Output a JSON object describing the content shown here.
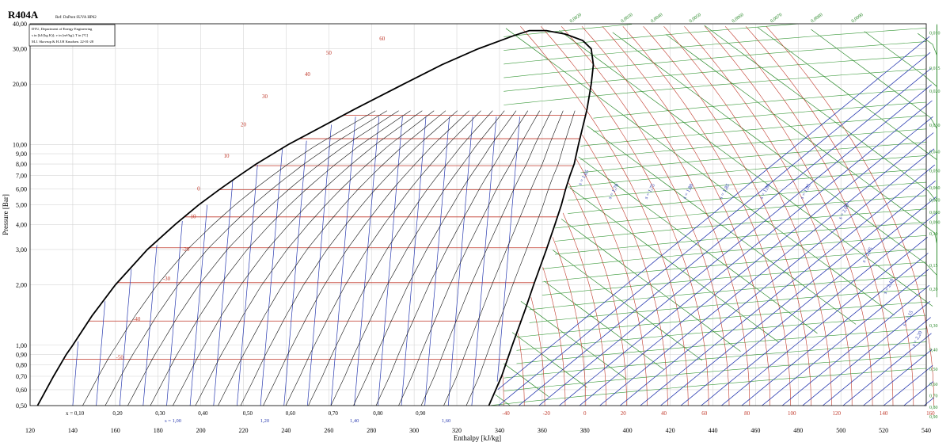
{
  "chart_data": {
    "type": "line",
    "title": "R404A",
    "reference": "Ref: DuPont SUVA HP62",
    "info_lines": [
      "DTU, Department of Energy Engineering",
      "s in [kJ/(kg K)]; v in [m³/kg]; T in [ºC]",
      "M.J. Skovrup & H.J.H Knudsen. 22-01-28"
    ],
    "xlabel": "Enthalpy [kJ/kg]",
    "ylabel": "Pressure [Bar]",
    "xlim": [
      120,
      540
    ],
    "ylim": [
      0.5,
      40
    ],
    "yscale": "log",
    "x_ticks": [
      120,
      140,
      160,
      180,
      200,
      220,
      240,
      260,
      280,
      300,
      320,
      340,
      360,
      380,
      400,
      420,
      440,
      460,
      480,
      500,
      520,
      540
    ],
    "x_tick_labels": [
      "120",
      "140",
      "160",
      "180",
      "200",
      "220",
      "240",
      "260",
      "280",
      "300",
      "320",
      "340",
      "360",
      "380",
      "400",
      "420",
      "440",
      "460",
      "480",
      "500",
      "520",
      "540"
    ],
    "y_ticks": [
      0.5,
      0.6,
      0.7,
      0.8,
      0.9,
      1.0,
      2.0,
      3.0,
      4.0,
      5.0,
      6.0,
      7.0,
      8.0,
      9.0,
      10.0,
      20.0,
      30.0,
      40.0
    ],
    "y_tick_labels": [
      "0,50",
      "0,60",
      "0,70",
      "0,80",
      "0,90",
      "1,00",
      "2,00",
      "3,00",
      "4,00",
      "5,00",
      "6,00",
      "7,00",
      "8,00",
      "9,00",
      "10,00",
      "20,00",
      "30,00",
      "40,00"
    ],
    "grid": true,
    "saturation_dome": {
      "liquid": [
        [
          123.5,
          0.5
        ],
        [
          131,
          0.7
        ],
        [
          137,
          0.9
        ],
        [
          140,
          1.0
        ],
        [
          149,
          1.4
        ],
        [
          160,
          2.0
        ],
        [
          175,
          3.0
        ],
        [
          188,
          4.0
        ],
        [
          199,
          5.0
        ],
        [
          209,
          6.0
        ],
        [
          218,
          7.0
        ],
        [
          226,
          8.0
        ],
        [
          241,
          10.0
        ],
        [
          272,
          15.0
        ],
        [
          295,
          20.0
        ],
        [
          313,
          25.0
        ],
        [
          330,
          30.0
        ],
        [
          347,
          35.0
        ],
        [
          354,
          37.0
        ]
      ],
      "vapour": [
        [
          335,
          0.5
        ],
        [
          341,
          0.7
        ],
        [
          346,
          1.0
        ],
        [
          352,
          1.5
        ],
        [
          356,
          2.0
        ],
        [
          362,
          3.0
        ],
        [
          366,
          4.0
        ],
        [
          369,
          5.0
        ],
        [
          371,
          6.0
        ],
        [
          373,
          7.0
        ],
        [
          375,
          8.0
        ],
        [
          377,
          10.0
        ],
        [
          381,
          15.0
        ],
        [
          383,
          20.0
        ],
        [
          384,
          25.0
        ],
        [
          383,
          30.0
        ],
        [
          379,
          33.0
        ],
        [
          371,
          35.5
        ],
        [
          362,
          37.0
        ],
        [
          354,
          37.0
        ]
      ]
    },
    "isotherm_labels": [
      {
        "T": "-50",
        "h": 162,
        "p": 0.85
      },
      {
        "T": "-40",
        "h": 170,
        "p": 1.32
      },
      {
        "T": "-30",
        "h": 184,
        "p": 2.1
      },
      {
        "T": "-20",
        "h": 193,
        "p": 2.95
      },
      {
        "T": "-10",
        "h": 196,
        "p": 4.3
      },
      {
        "T": "0",
        "h": 199,
        "p": 5.9
      },
      {
        "T": "10",
        "h": 212,
        "p": 8.6
      },
      {
        "T": "20",
        "h": 220,
        "p": 12.3
      },
      {
        "T": "30",
        "h": 230,
        "p": 17.0
      },
      {
        "T": "40",
        "h": 250,
        "p": 22.0
      },
      {
        "T": "50",
        "h": 260,
        "p": 28.0
      },
      {
        "T": "60",
        "h": 285,
        "p": 33.0
      }
    ],
    "isotherm_pressures": [
      0.85,
      1.32,
      2.05,
      3.06,
      4.36,
      5.95,
      7.85,
      10.7,
      14.0,
      18.2,
      23.3,
      29.0
    ],
    "bottom_temperature_labels": [
      "-40",
      "-20",
      "0",
      "20",
      "40",
      "60",
      "80",
      "100",
      "120",
      "140",
      "160"
    ],
    "bottom_temperature_h": [
      343,
      362,
      380,
      398,
      417,
      436,
      456,
      477,
      498,
      520,
      542
    ],
    "quality_labels": [
      "x = 0,10",
      "0,20",
      "0,30",
      "0,40",
      "0,50",
      "0,60",
      "0,70",
      "0,80",
      "0,90"
    ],
    "quality_h": [
      141,
      161,
      181,
      201,
      222,
      242,
      262,
      283,
      303
    ],
    "entropy_bottom_labels": [
      "s = 1,00",
      "1,20",
      "1,40",
      "1,60"
    ],
    "entropy_bottom_h": [
      187,
      230,
      272,
      315
    ],
    "entropy_labels": [
      "s = 1,65",
      "s = 1,70",
      "s = 1,75",
      "s = 1,80",
      "s = 1,85",
      "s = 1,90",
      "s = 1,95",
      "s = 2,00",
      "s = 2,05",
      "s = 2,10",
      "s = 2,15",
      "s = 2,20"
    ],
    "entropy_label_pos": [
      [
        380,
        6.8
      ],
      [
        394,
        5.8
      ],
      [
        411,
        5.8
      ],
      [
        429,
        5.8
      ],
      [
        446,
        5.8
      ],
      [
        465,
        5.8
      ],
      [
        484,
        5.8
      ],
      [
        502,
        4.6
      ],
      [
        513,
        2.8
      ],
      [
        523,
        1.95
      ],
      [
        532,
        1.35
      ],
      [
        540,
        1.07
      ]
    ],
    "specific_volume_labels": [
      "0,0020",
      "0,0030",
      "0,0040",
      "0,0050",
      "0,0060",
      "0,0070",
      "0,0080",
      "0,0090",
      "0,010",
      "0,015",
      "0,020",
      "0,030",
      "0,040",
      "0,050",
      "0,060",
      "0,070",
      "0,080",
      "0,090",
      "0,10",
      "0,15",
      "0,20",
      "0,30",
      "0,40",
      "0,50",
      "0,60",
      "0,70",
      "0,80",
      "0,90"
    ],
    "specific_volume_pressures": [
      null,
      null,
      null,
      null,
      null,
      null,
      null,
      39.0,
      36.0,
      24.0,
      18.5,
      12.5,
      9.2,
      7.4,
      6.1,
      5.3,
      4.6,
      4.1,
      3.6,
      2.5,
      1.9,
      1.25,
      0.95,
      0.76,
      0.64,
      0.56,
      0.49,
      0.44
    ],
    "top_volume_h": [
      376,
      400,
      414,
      432,
      452,
      470,
      489,
      508
    ]
  }
}
